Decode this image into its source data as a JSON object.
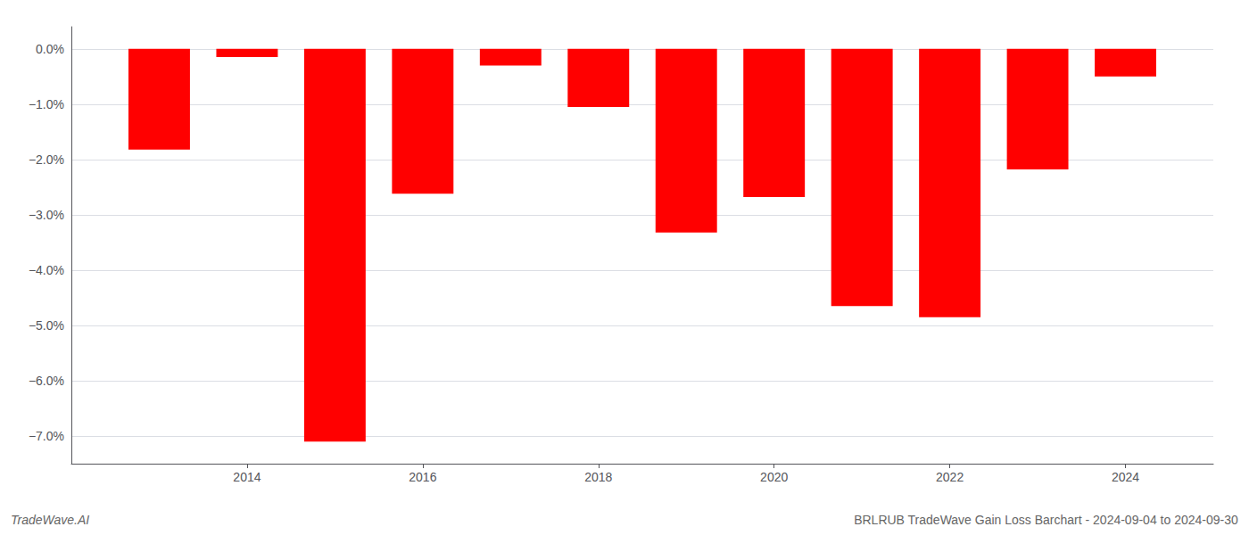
{
  "chart_data": {
    "type": "bar",
    "x": [
      2013,
      2014,
      2015,
      2016,
      2017,
      2018,
      2019,
      2020,
      2021,
      2022,
      2023,
      2024
    ],
    "values": [
      -1.82,
      -0.15,
      -7.1,
      -2.62,
      -0.3,
      -1.05,
      -3.32,
      -2.68,
      -4.65,
      -4.85,
      -2.18,
      -0.5
    ],
    "color": "#ff0000",
    "xlim": [
      2012,
      2025
    ],
    "xticks": [
      2014,
      2016,
      2018,
      2020,
      2022,
      2024
    ],
    "ylim": [
      -7.5,
      0.4
    ],
    "yticks": [
      {
        "value": 0.0,
        "label": "0.0%"
      },
      {
        "value": -1.0,
        "label": "−1.0%"
      },
      {
        "value": -2.0,
        "label": "−2.0%"
      },
      {
        "value": -3.0,
        "label": "−3.0%"
      },
      {
        "value": -4.0,
        "label": "−4.0%"
      },
      {
        "value": -5.0,
        "label": "−5.0%"
      },
      {
        "value": -6.0,
        "label": "−6.0%"
      },
      {
        "value": -7.0,
        "label": "−7.0%"
      }
    ],
    "grid": true,
    "annotations": [
      {
        "text": "TradeWave.AI"
      },
      {
        "text": "BRLRUB TradeWave Gain Loss Barchart - 2024-09-04 to 2024-09-30"
      }
    ]
  }
}
